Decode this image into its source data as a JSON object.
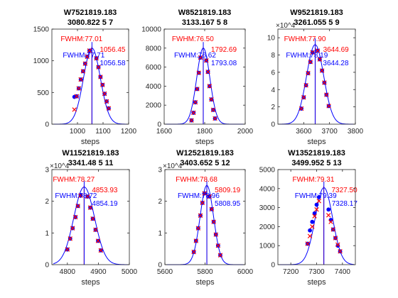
{
  "figure": {
    "colors": {
      "fit": "#0000ff",
      "measured": "#ff0000",
      "axis": "#262626"
    }
  },
  "chart_data": [
    {
      "type": "line",
      "title_line1": "W7521819.183",
      "title_line2": "3080.822 5 7",
      "xlabel": "steps",
      "exponent": "",
      "xlim": [
        900,
        1200
      ],
      "ylim": [
        0,
        1500
      ],
      "xticks": [
        1000,
        1100,
        1200
      ],
      "yticks": [
        0,
        500,
        1000,
        1500
      ],
      "red_label": "FWHM:77.01",
      "blue_label": "FWHM:77.71",
      "red_peak_label": "1056.45",
      "blue_peak_label": "1056.58",
      "red_peak": 1056.45,
      "blue_peak": 1056.58,
      "red_fwhm": 77.01,
      "blue_fwhm": 77.71,
      "amplitude": 1200,
      "series": [
        {
          "name": "measured",
          "x": [
            988,
            997,
            1005,
            1013,
            1022,
            1030,
            1038,
            1047,
            1074,
            1082,
            1090,
            1098,
            1106,
            1114,
            1122
          ],
          "y": [
            230,
            440,
            565,
            705,
            835,
            955,
            1065,
            1160,
            1040,
            900,
            745,
            620,
            480,
            360,
            250
          ]
        },
        {
          "name": "fit",
          "x": [
            988,
            997,
            1005,
            1013,
            1022,
            1030,
            1038,
            1047,
            1074,
            1082,
            1090,
            1098,
            1106,
            1114,
            1122
          ],
          "y": [
            430,
            440,
            565,
            705,
            835,
            955,
            1065,
            1160,
            1040,
            900,
            745,
            620,
            480,
            360,
            250
          ]
        }
      ]
    },
    {
      "type": "line",
      "title_line1": "W8521819.183",
      "title_line2": "3133.167 5 8",
      "xlabel": "steps",
      "exponent": "",
      "xlim": [
        1600,
        2000
      ],
      "ylim": [
        0,
        10000
      ],
      "xticks": [
        1600,
        1800,
        2000
      ],
      "yticks": [
        0,
        2000,
        4000,
        6000,
        8000,
        10000
      ],
      "red_label": "FWHM:76.50",
      "blue_label": "FWHM:76.62",
      "red_peak_label": "1792.69",
      "blue_peak_label": "1793.08",
      "red_peak": 1792.69,
      "blue_peak": 1793.08,
      "red_fwhm": 76.5,
      "blue_fwhm": 76.62,
      "amplitude": 8000,
      "series": [
        {
          "name": "measured",
          "x": [
            1735,
            1745,
            1754,
            1763,
            1771,
            1779,
            1808,
            1816,
            1824,
            1833,
            1842,
            1851
          ],
          "y": [
            400,
            1200,
            2300,
            3700,
            5400,
            7000,
            6700,
            5500,
            4000,
            2600,
            1500,
            600
          ]
        },
        {
          "name": "fit",
          "x": [
            1735,
            1745,
            1754,
            1763,
            1771,
            1779,
            1808,
            1816,
            1824,
            1833,
            1842,
            1851
          ],
          "y": [
            400,
            1200,
            2300,
            3700,
            5400,
            7000,
            6700,
            5500,
            4000,
            2600,
            1500,
            600
          ]
        }
      ]
    },
    {
      "type": "line",
      "title_line1": "W9521819.183",
      "title_line2": "3261.055 5 9",
      "xlabel": "steps",
      "exponent": "×10^4",
      "xlim": [
        3500,
        3800
      ],
      "ylim": [
        0,
        11
      ],
      "xticks": [
        3600,
        3700,
        3800
      ],
      "yticks": [
        0,
        2,
        4,
        6,
        8,
        10
      ],
      "red_label": "FWHM:77.90",
      "blue_label": "FWHM:78.19",
      "red_peak_label": "3644.69",
      "blue_peak_label": "3644.28",
      "red_peak": 3644.69,
      "blue_peak": 3644.28,
      "red_fwhm": 77.9,
      "blue_fwhm": 78.19,
      "amplitude": 9.2,
      "series": [
        {
          "name": "measured",
          "x": [
            3591,
            3600,
            3609,
            3617,
            3626,
            3634,
            3654,
            3662,
            3671,
            3680,
            3688,
            3697
          ],
          "y": [
            1.8,
            3.1,
            4.5,
            5.9,
            7.2,
            8.3,
            8.5,
            7.5,
            6.2,
            4.8,
            3.4,
            2.1
          ]
        },
        {
          "name": "fit",
          "x": [
            3591,
            3600,
            3609,
            3617,
            3626,
            3634,
            3654,
            3662,
            3671,
            3680,
            3688,
            3697
          ],
          "y": [
            1.8,
            3.1,
            4.5,
            5.9,
            7.2,
            8.3,
            8.5,
            7.5,
            6.2,
            4.8,
            3.4,
            2.1
          ]
        }
      ]
    },
    {
      "type": "line",
      "title_line1": "W11521819.183",
      "title_line2": "3341.48 5 11",
      "xlabel": "steps",
      "exponent": "×10^4",
      "xlim": [
        4750,
        5000
      ],
      "ylim": [
        0,
        3
      ],
      "xticks": [
        4800,
        4900,
        5000
      ],
      "yticks": [
        0,
        1,
        2,
        3
      ],
      "red_label": "FWHM:78.27",
      "blue_label": "FWHM:78.72",
      "red_peak_label": "4853.93",
      "blue_peak_label": "4854.19",
      "red_peak": 4853.93,
      "blue_peak": 4854.19,
      "red_fwhm": 78.27,
      "blue_fwhm": 78.72,
      "amplitude": 2.45,
      "series": [
        {
          "name": "measured",
          "x": [
            4800,
            4809,
            4817,
            4826,
            4834,
            4843,
            4865,
            4874,
            4882,
            4891,
            4899,
            4908
          ],
          "y": [
            0.48,
            0.82,
            1.15,
            1.5,
            1.85,
            2.18,
            2.15,
            1.8,
            1.45,
            1.1,
            0.75,
            0.45
          ]
        },
        {
          "name": "fit",
          "x": [
            4800,
            4809,
            4817,
            4826,
            4834,
            4843,
            4865,
            4874,
            4882,
            4891,
            4899,
            4908
          ],
          "y": [
            0.48,
            0.82,
            1.15,
            1.5,
            1.85,
            2.18,
            2.15,
            1.8,
            1.45,
            1.1,
            0.75,
            0.45
          ]
        }
      ]
    },
    {
      "type": "line",
      "title_line1": "W12521819.183",
      "title_line2": "3403.652 5 12",
      "xlabel": "steps",
      "exponent": "×10^4",
      "xlim": [
        5600,
        6000
      ],
      "ylim": [
        0,
        3
      ],
      "xticks": [
        5600,
        5800,
        6000
      ],
      "yticks": [
        0,
        1,
        2,
        3
      ],
      "red_label": "FWHM:78.68",
      "blue_label": "FWHM:78.96",
      "red_peak_label": "5809.19",
      "blue_peak_label": "5808.95",
      "red_peak": 5809.19,
      "blue_peak": 5808.95,
      "red_fwhm": 78.68,
      "blue_fwhm": 78.96,
      "amplitude": 2.5,
      "series": [
        {
          "name": "measured",
          "x": [
            5744,
            5755,
            5766,
            5777,
            5787,
            5797,
            5822,
            5833,
            5843,
            5854,
            5865,
            5876
          ],
          "y": [
            0.4,
            0.75,
            1.15,
            1.55,
            1.95,
            2.25,
            2.15,
            1.75,
            1.35,
            0.95,
            0.6,
            0.3
          ]
        },
        {
          "name": "fit",
          "x": [
            5744,
            5755,
            5766,
            5777,
            5787,
            5797,
            5822,
            5833,
            5843,
            5854,
            5865,
            5876
          ],
          "y": [
            0.4,
            0.75,
            1.15,
            1.55,
            1.95,
            2.25,
            2.15,
            1.75,
            1.35,
            0.95,
            0.6,
            0.3
          ]
        }
      ]
    },
    {
      "type": "line",
      "title_line1": "W13521819.183",
      "title_line2": "3499.952 5 13",
      "xlabel": "steps",
      "exponent": "",
      "xlim": [
        7150,
        7450
      ],
      "ylim": [
        0,
        5000
      ],
      "xticks": [
        7200,
        7300,
        7400
      ],
      "yticks": [
        0,
        1000,
        2000,
        3000,
        4000,
        5000
      ],
      "red_label": "FWHM:79.31",
      "blue_label": "FWHM:79.39",
      "red_peak_label": "7327.50",
      "blue_peak_label": "7328.17",
      "red_peak": 7327.5,
      "blue_peak": 7328.17,
      "red_fwhm": 79.31,
      "blue_fwhm": 79.39,
      "amplitude": 4050,
      "series": [
        {
          "name": "measured",
          "x": [
            7265,
            7274,
            7283,
            7292,
            7300,
            7309,
            7346,
            7355,
            7364,
            7373,
            7382,
            7391
          ],
          "y": [
            1100,
            1500,
            2000,
            2550,
            2900,
            3350,
            2600,
            2250,
            1850,
            1400,
            1050,
            700
          ]
        },
        {
          "name": "fit",
          "x": [
            7265,
            7274,
            7283,
            7292,
            7300,
            7309,
            7346,
            7355,
            7364,
            7373,
            7382,
            7391
          ],
          "y": [
            1100,
            1800,
            2250,
            2700,
            3150,
            3550,
            2900,
            2350,
            1850,
            1400,
            1000,
            700
          ]
        }
      ]
    }
  ]
}
